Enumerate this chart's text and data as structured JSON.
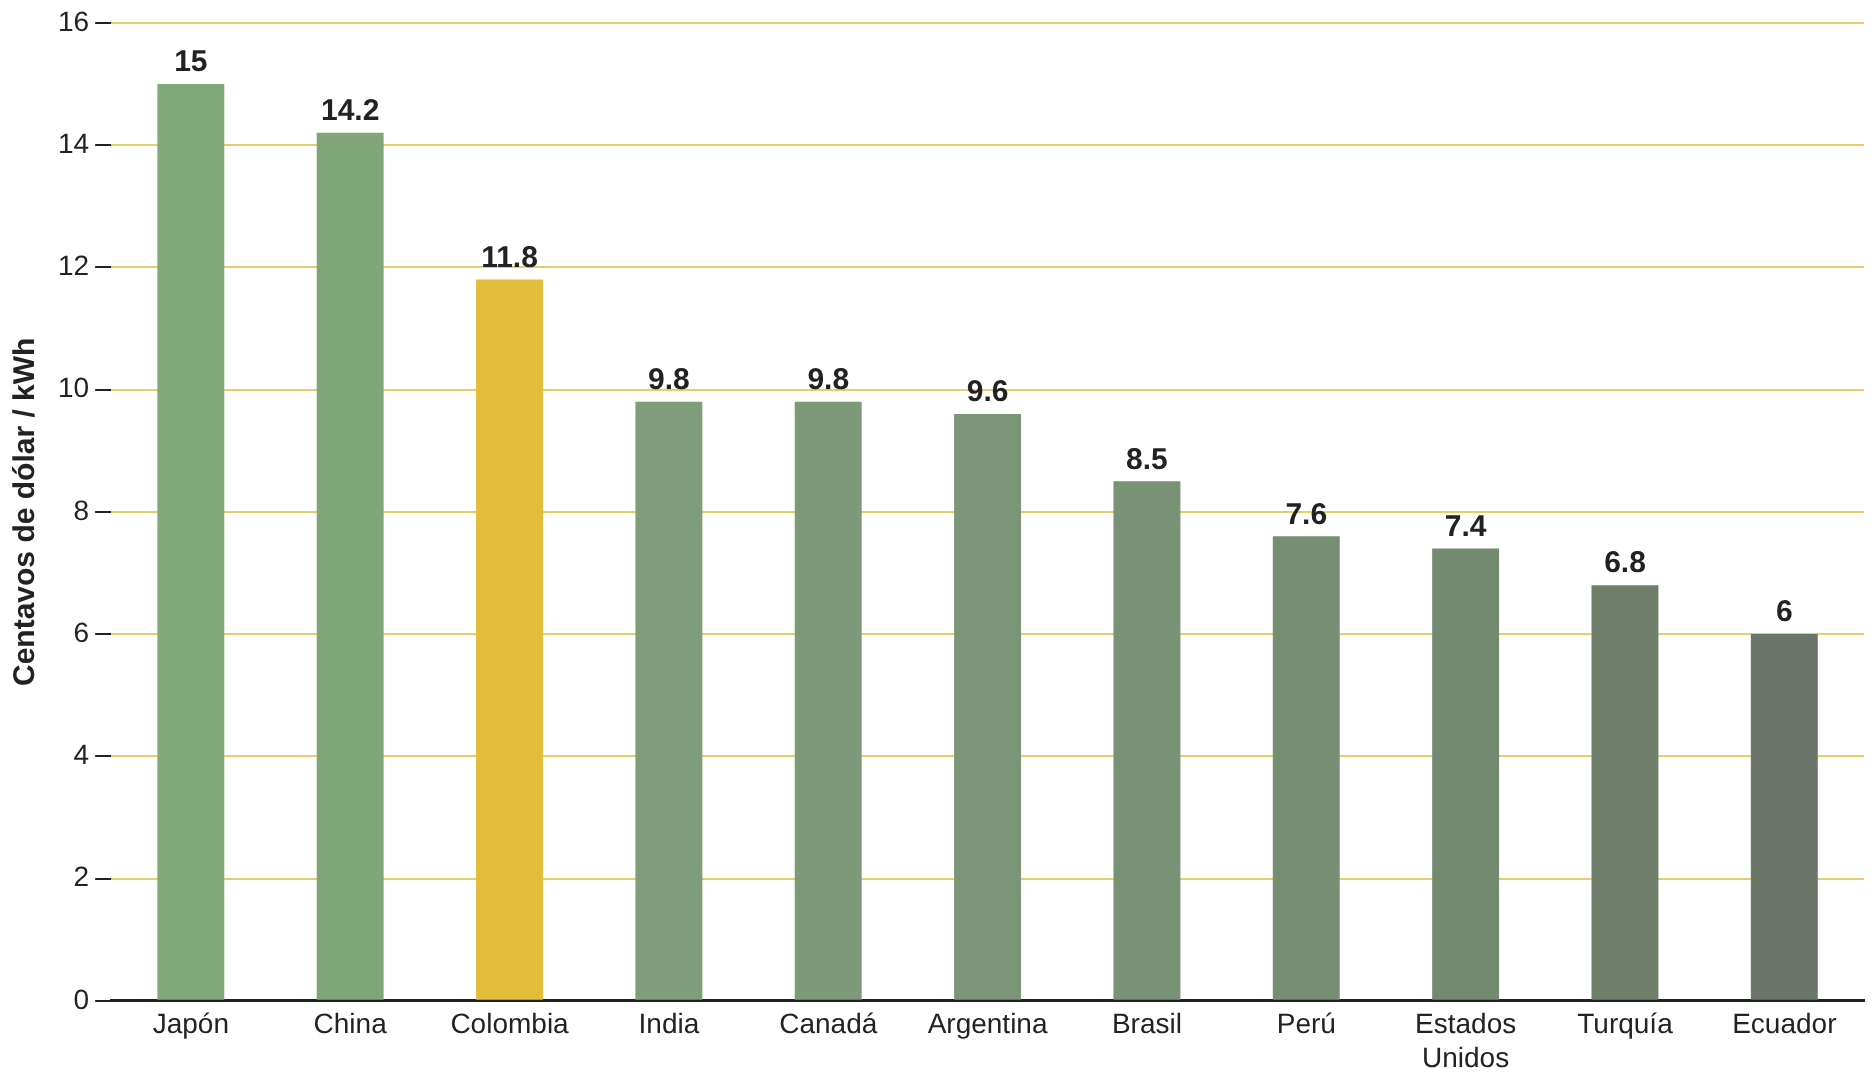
{
  "chart_data": {
    "type": "bar",
    "ylabel": "Centavos de dólar / kWh",
    "categories": [
      "Japón",
      "China",
      "Colombia",
      "India",
      "Canadá",
      "Argentina",
      "Brasil",
      "Perú",
      "Estados Unidos",
      "Turquía",
      "Ecuador"
    ],
    "values": [
      15,
      14.2,
      11.8,
      9.8,
      9.8,
      9.6,
      8.5,
      7.6,
      7.4,
      6.8,
      6
    ],
    "colors": [
      "#80a878",
      "#7fa578",
      "#e3bd3a",
      "#7e9e7a",
      "#7c9a78",
      "#7a9676",
      "#789275",
      "#768e72",
      "#748a70",
      "#707f6c",
      "#6c756a"
    ],
    "ylim": [
      0,
      16
    ],
    "yticks": [
      0,
      2,
      4,
      6,
      8,
      10,
      12,
      14,
      16
    ],
    "grid": "y",
    "data_labels": true,
    "legend": false
  }
}
